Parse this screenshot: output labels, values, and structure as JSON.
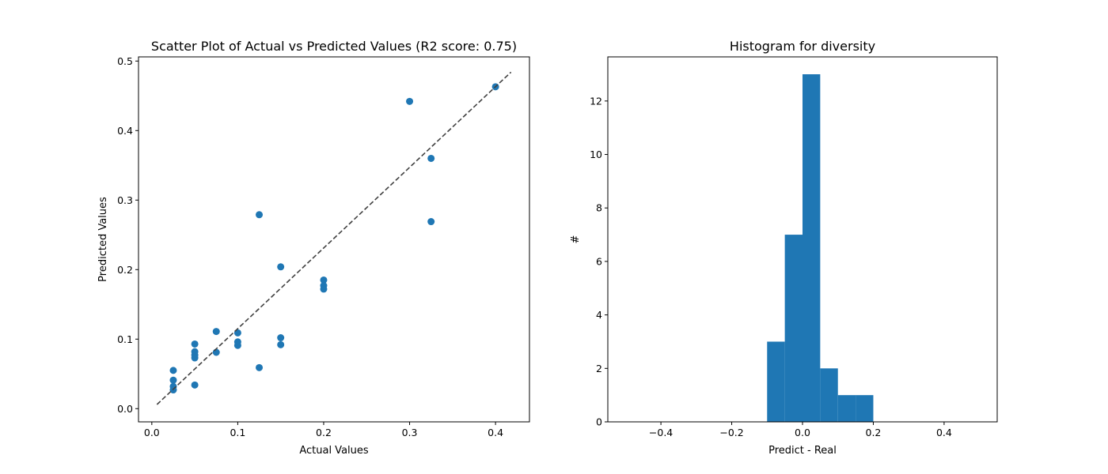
{
  "colors": {
    "marker": "#1f77b4",
    "bar": "#1f77b4",
    "reference_line": "#404040",
    "axes": "#000000",
    "background": "#ffffff"
  },
  "chart_data": [
    {
      "type": "scatter",
      "title": "Scatter Plot of Actual vs Predicted Values (R2 score: 0.75)",
      "xlabel": "Actual Values",
      "ylabel": "Predicted Values",
      "xlim": [
        -0.0155,
        0.4395
      ],
      "ylim": [
        -0.019,
        0.506
      ],
      "xticks": [
        0.0,
        0.1,
        0.2,
        0.3,
        0.4
      ],
      "xtick_labels": [
        "0.0",
        "0.1",
        "0.2",
        "0.3",
        "0.4"
      ],
      "yticks": [
        0.0,
        0.1,
        0.2,
        0.3,
        0.4,
        0.5
      ],
      "ytick_labels": [
        "0.0",
        "0.1",
        "0.2",
        "0.3",
        "0.4",
        "0.5"
      ],
      "grid": false,
      "reference_line": {
        "style": "dashed",
        "x": [
          0.006,
          0.418
        ],
        "y": [
          0.006,
          0.484
        ]
      },
      "points": [
        {
          "x": 0.025,
          "y": 0.055
        },
        {
          "x": 0.025,
          "y": 0.041
        },
        {
          "x": 0.025,
          "y": 0.032
        },
        {
          "x": 0.025,
          "y": 0.027
        },
        {
          "x": 0.05,
          "y": 0.093
        },
        {
          "x": 0.05,
          "y": 0.082
        },
        {
          "x": 0.05,
          "y": 0.077
        },
        {
          "x": 0.05,
          "y": 0.073
        },
        {
          "x": 0.05,
          "y": 0.034
        },
        {
          "x": 0.075,
          "y": 0.111
        },
        {
          "x": 0.075,
          "y": 0.081
        },
        {
          "x": 0.1,
          "y": 0.109
        },
        {
          "x": 0.1,
          "y": 0.096
        },
        {
          "x": 0.1,
          "y": 0.091
        },
        {
          "x": 0.125,
          "y": 0.279
        },
        {
          "x": 0.125,
          "y": 0.059
        },
        {
          "x": 0.15,
          "y": 0.204
        },
        {
          "x": 0.15,
          "y": 0.102
        },
        {
          "x": 0.15,
          "y": 0.092
        },
        {
          "x": 0.2,
          "y": 0.185
        },
        {
          "x": 0.2,
          "y": 0.177
        },
        {
          "x": 0.2,
          "y": 0.172
        },
        {
          "x": 0.3,
          "y": 0.442
        },
        {
          "x": 0.325,
          "y": 0.36
        },
        {
          "x": 0.325,
          "y": 0.269
        },
        {
          "x": 0.4,
          "y": 0.463
        }
      ]
    },
    {
      "type": "histogram",
      "title": "Histogram for diversity",
      "xlabel": "Predict - Real",
      "ylabel": "#",
      "xlim": [
        -0.55,
        0.55
      ],
      "ylim": [
        0,
        13.65
      ],
      "xticks": [
        -0.4,
        -0.2,
        0.0,
        0.2,
        0.4
      ],
      "xtick_labels": [
        "−0.4",
        "−0.2",
        "0.0",
        "0.2",
        "0.4"
      ],
      "yticks": [
        0,
        2,
        4,
        6,
        8,
        10,
        12
      ],
      "ytick_labels": [
        "0",
        "2",
        "4",
        "6",
        "8",
        "10",
        "12"
      ],
      "grid": false,
      "bins": [
        {
          "x0": -0.1,
          "x1": -0.05,
          "count": 3
        },
        {
          "x0": -0.05,
          "x1": 0.0,
          "count": 7
        },
        {
          "x0": 0.0,
          "x1": 0.05,
          "count": 13
        },
        {
          "x0": 0.05,
          "x1": 0.1,
          "count": 2
        },
        {
          "x0": 0.1,
          "x1": 0.15,
          "count": 1
        },
        {
          "x0": 0.15,
          "x1": 0.2,
          "count": 1
        }
      ]
    }
  ]
}
